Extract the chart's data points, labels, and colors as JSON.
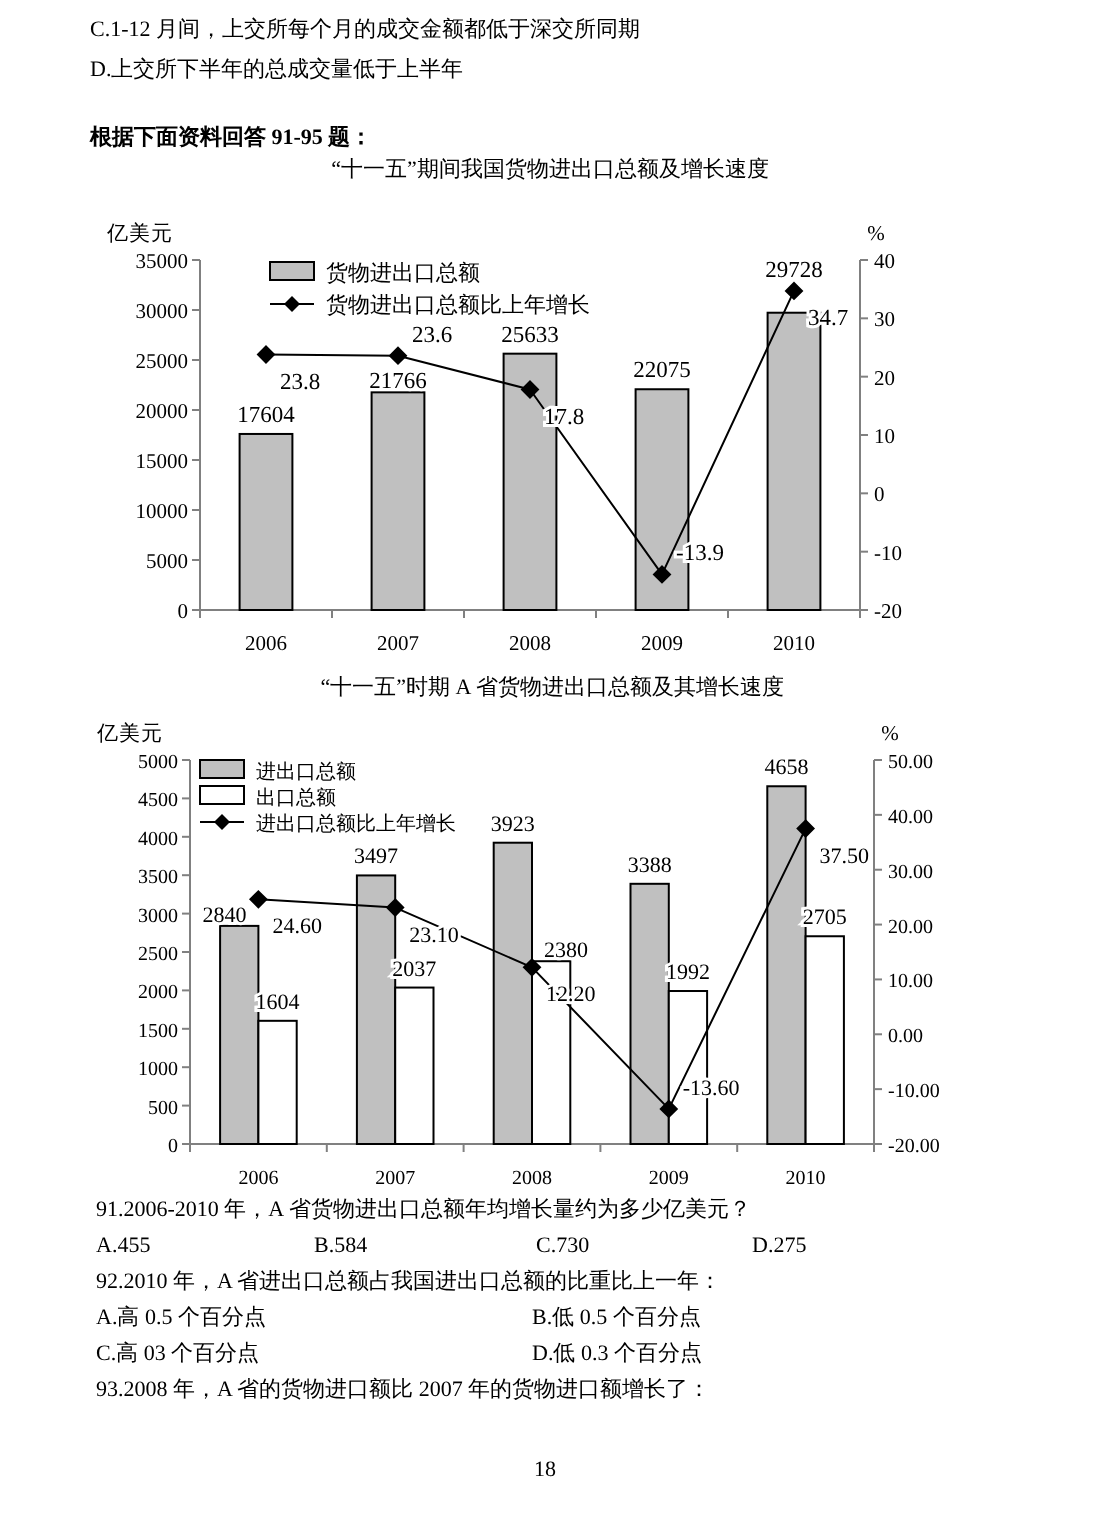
{
  "chart_data": [
    {
      "type": "bar",
      "title": "“十一五”期间我国货物进出口总额及增长速度",
      "ylabel": "亿美元",
      "y2label": "%",
      "annotations": [
        "C.1-12 月间，上交所每个月的成交金额都低于深交所同期",
        "D.上交所下半年的总成交量低于上半年",
        "根据下面资料回答 91-95 题："
      ],
      "categories": [
        "2006",
        "2007",
        "2008",
        "2009",
        "2010"
      ],
      "series": [
        {
          "name": "货物进出口总额",
          "type": "bar",
          "color": "#c0c0c0",
          "values": [
            17604,
            21766,
            25633,
            22075,
            29728
          ]
        },
        {
          "name": "货物进出口总额比上年增长",
          "type": "line",
          "axis": "y2",
          "color": "#000000",
          "marker": "diamond",
          "values": [
            23.8,
            23.6,
            17.8,
            -13.9,
            34.7
          ]
        }
      ],
      "ylim": [
        0,
        35000
      ],
      "yticks": [
        0,
        5000,
        10000,
        15000,
        20000,
        25000,
        30000,
        35000
      ],
      "y2lim": [
        -20,
        40
      ],
      "y2ticks": [
        -20,
        -10,
        0,
        10,
        20,
        30,
        40
      ],
      "data_labels": true,
      "legend": "top left",
      "grid": false
    },
    {
      "type": "bar",
      "title": "“十一五”时期 A 省货物进出口总额及其增长速度",
      "ylabel": "亿美元",
      "y2label": "%",
      "annotations": [
        "91.2006-2010 年，A 省货物进出口总额年均增长量约为多少亿美元？",
        "A.455",
        "B.584",
        "C.730",
        "D.275",
        "92.2010 年，A 省进出口总额占我国进出口总额的比重比上一年：",
        "A.高 0.5 个百分点",
        "B.低 0.5 个百分点",
        "C.高 03 个百分点",
        "D.低 0.3 个百分点",
        "93.2008 年，A 省的货物进口额比 2007 年的货物进口额增长了：",
        "18"
      ],
      "categories": [
        "2006",
        "2007",
        "2008",
        "2009",
        "2010"
      ],
      "series": [
        {
          "name": "进出口总额",
          "type": "bar",
          "color": "#c0c0c0",
          "values": [
            2840,
            3497,
            3923,
            3388,
            4658
          ]
        },
        {
          "name": "出口总额",
          "type": "bar",
          "color": "#ffffff",
          "values": [
            1604,
            2037,
            2380,
            1992,
            2705
          ]
        },
        {
          "name": "进出口总额比上年增长",
          "type": "line",
          "axis": "y2",
          "color": "#000000",
          "marker": "diamond",
          "values": [
            24.6,
            23.1,
            12.2,
            -13.6,
            37.5
          ],
          "value_labels": [
            "24.60",
            "23.10",
            "12.20",
            "-13.60",
            "37.50"
          ]
        }
      ],
      "ylim": [
        0,
        5000
      ],
      "yticks": [
        0,
        500,
        1000,
        1500,
        2000,
        2500,
        3000,
        3500,
        4000,
        4500,
        5000
      ],
      "y2lim": [
        -20,
        50
      ],
      "y2ticks": [
        {
          "value": -20,
          "label": "-20.00"
        },
        {
          "value": -10,
          "label": "-10.00"
        },
        {
          "value": 0,
          "label": "0.00"
        },
        {
          "value": 10,
          "label": "10.00"
        },
        {
          "value": 20,
          "label": "20.00"
        },
        {
          "value": 30,
          "label": "30.00"
        },
        {
          "value": 40,
          "label": "40.00"
        },
        {
          "value": 50,
          "label": "50.00"
        }
      ],
      "data_labels": true,
      "legend": "top left",
      "grid": false
    }
  ]
}
